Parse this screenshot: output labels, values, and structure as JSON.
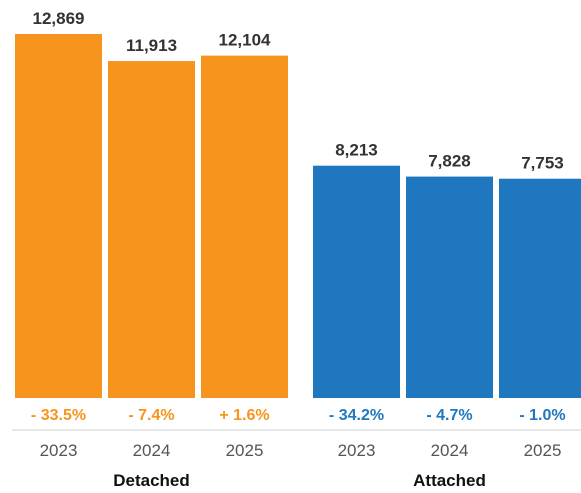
{
  "chart_data": {
    "type": "bar",
    "ylim": [
      0,
      13000
    ],
    "groups": [
      {
        "name": "Detached",
        "color": "#F7941D",
        "categories": [
          "2023",
          "2024",
          "2025"
        ],
        "values": [
          12869,
          11913,
          12104
        ],
        "value_labels": [
          "12,869",
          "11,913",
          "12,104"
        ],
        "changes": [
          "- 33.5%",
          "- 7.4%",
          "+ 1.6%"
        ]
      },
      {
        "name": "Attached",
        "color": "#1F77BF",
        "categories": [
          "2023",
          "2024",
          "2025"
        ],
        "values": [
          8213,
          7828,
          7753
        ],
        "value_labels": [
          "8,213",
          "7,828",
          "7,753"
        ],
        "changes": [
          "- 34.2%",
          "- 4.7%",
          "- 1.0%"
        ]
      }
    ]
  }
}
